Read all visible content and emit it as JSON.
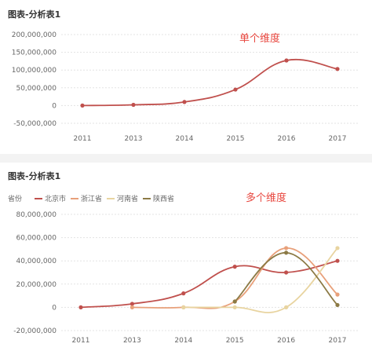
{
  "chart_data": [
    {
      "type": "line",
      "title": "图表-分析表1",
      "annotation": "单个维度",
      "categories": [
        "2011",
        "2013",
        "2014",
        "2015",
        "2016",
        "2017"
      ],
      "y_ticks": [
        "200,000,000",
        "150,000,000",
        "100,000,000",
        "50,000,000",
        "0",
        "-50,000,000"
      ],
      "ylim": [
        -50000000,
        200000000
      ],
      "grid": true,
      "series": [
        {
          "values": [
            0,
            2000000,
            10000000,
            45000000,
            127000000,
            103000000
          ],
          "color": "#c0504d"
        }
      ]
    },
    {
      "type": "line",
      "title": "图表-分析表1",
      "annotation": "多个维度",
      "legend_title": "省份",
      "legend_position": "top-left",
      "categories": [
        "2011",
        "2013",
        "2014",
        "2015",
        "2016",
        "2017"
      ],
      "y_ticks": [
        "80,000,000",
        "60,000,000",
        "40,000,000",
        "20,000,000",
        "0",
        "-20,000,000"
      ],
      "ylim": [
        -20000000,
        80000000
      ],
      "grid": true,
      "series": [
        {
          "name": "北京市",
          "color": "#c0504d",
          "values": [
            0,
            3000000,
            12000000,
            35000000,
            30000000,
            40000000
          ]
        },
        {
          "name": "浙江省",
          "color": "#e8a07a",
          "values": [
            null,
            0,
            0,
            5000000,
            51000000,
            11000000
          ]
        },
        {
          "name": "河南省",
          "color": "#e8d4a0",
          "values": [
            null,
            null,
            0,
            0,
            0,
            51000000
          ]
        },
        {
          "name": "陕西省",
          "color": "#8c7a45",
          "values": [
            null,
            null,
            null,
            5000000,
            47000000,
            2000000
          ]
        }
      ]
    }
  ]
}
